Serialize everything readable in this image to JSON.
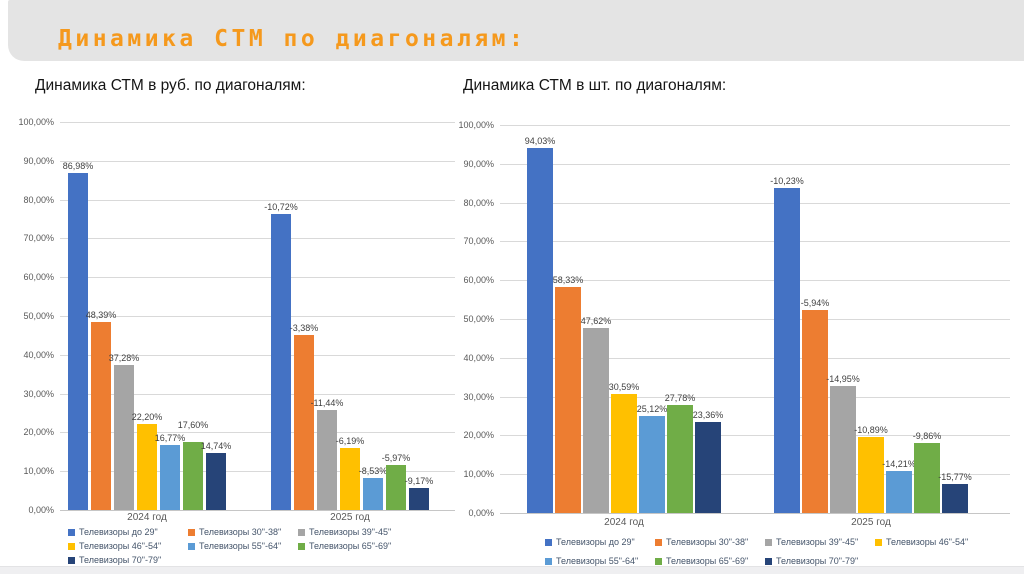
{
  "header": {
    "title": "Динамика СТМ по диагоналям:",
    "accent_color": "#f5991d",
    "band_color": "#e4e4e4"
  },
  "chart_data": [
    {
      "type": "bar",
      "title": "Динамика СТМ в руб. по диагоналям:",
      "categories": [
        "2024 год",
        "2025 год"
      ],
      "ylim": [
        0,
        100
      ],
      "grid": true,
      "legend_position": "bottom",
      "ytick_labels": [
        "100,00%",
        "90,00%",
        "80,00%",
        "70,00%",
        "60,00%",
        "50,00%",
        "40,00%",
        "30,00%",
        "20,00%",
        "10,00%",
        "0,00%"
      ],
      "series": [
        {
          "name": "Телевизоры  до 29\"",
          "color": "#4472c4",
          "points": [
            {
              "label": "86,98%",
              "value": 86.98,
              "height": 86.98
            },
            {
              "label": "-10,72%",
              "value": -10.72,
              "height": 76.26
            }
          ]
        },
        {
          "name": "Телевизоры 30\"-38\"",
          "color": "#ed7d31",
          "points": [
            {
              "label": "48,39%",
              "value": 48.39,
              "height": 48.39
            },
            {
              "label": "-3,38%",
              "value": -3.38,
              "height": 45.01
            }
          ]
        },
        {
          "name": "Телевизоры 39\"-45\"",
          "color": "#a5a5a5",
          "points": [
            {
              "label": "37,28%",
              "value": 37.28,
              "height": 37.28
            },
            {
              "label": "-11,44%",
              "value": -11.44,
              "height": 25.84
            }
          ]
        },
        {
          "name": "Телевизоры 46\"-54\"",
          "color": "#ffc000",
          "points": [
            {
              "label": "22,20%",
              "value": 22.2,
              "height": 22.2
            },
            {
              "label": "-6,19%",
              "value": -6.19,
              "height": 16.01
            }
          ]
        },
        {
          "name": "Телевизоры 55\"-64\"",
          "color": "#5b9bd5",
          "points": [
            {
              "label": "16,77%",
              "value": 16.77,
              "height": 16.77
            },
            {
              "label": "-8,53%",
              "value": -8.53,
              "height": 8.24
            }
          ]
        },
        {
          "name": "Телевизоры 65\"-69\"",
          "color": "#70ad47",
          "points": [
            {
              "label": "17,60%",
              "value": 17.6,
              "height": 17.6,
              "dy": 10
            },
            {
              "label": "-5,97%",
              "value": -5.97,
              "height": 11.63
            }
          ]
        },
        {
          "name": "Телевизоры 70\"-79\"",
          "color": "#264478",
          "points": [
            {
              "label": "14,74%",
              "value": 14.74,
              "height": 14.74
            },
            {
              "label": "-9,17%",
              "value": -9.17,
              "height": 5.57
            }
          ]
        }
      ]
    },
    {
      "type": "bar",
      "title": "Динамика СТМ в шт. по диагоналям:",
      "categories": [
        "2024 год",
        "2025 год"
      ],
      "ylim": [
        0,
        100
      ],
      "grid": true,
      "legend_position": "bottom",
      "ytick_labels": [
        "100,00%",
        "90,00%",
        "80,00%",
        "70,00%",
        "60,00%",
        "50,00%",
        "40,00%",
        "30,00%",
        "20,00%",
        "10,00%",
        "0,00%"
      ],
      "series": [
        {
          "name": "Телевизоры  до 29\"",
          "color": "#4472c4",
          "points": [
            {
              "label": "94,03%",
              "value": 94.03,
              "height": 94.03
            },
            {
              "label": "-10,23%",
              "value": -10.23,
              "height": 83.8
            }
          ]
        },
        {
          "name": "Телевизоры 30\"-38\"",
          "color": "#ed7d31",
          "points": [
            {
              "label": "58,33%",
              "value": 58.33,
              "height": 58.33
            },
            {
              "label": "-5,94%",
              "value": -5.94,
              "height": 52.39
            }
          ]
        },
        {
          "name": "Телевизоры 39\"-45\"",
          "color": "#a5a5a5",
          "points": [
            {
              "label": "47,62%",
              "value": 47.62,
              "height": 47.62
            },
            {
              "label": "-14,95%",
              "value": -14.95,
              "height": 32.67
            }
          ]
        },
        {
          "name": "Телевизоры 46\"-54\"",
          "color": "#ffc000",
          "points": [
            {
              "label": "30,59%",
              "value": 30.59,
              "height": 30.59
            },
            {
              "label": "-10,89%",
              "value": -10.89,
              "height": 19.7
            }
          ]
        },
        {
          "name": "Телевизоры 55\"-64\"",
          "color": "#5b9bd5",
          "points": [
            {
              "label": "25,12%",
              "value": 25.12,
              "height": 25.12
            },
            {
              "label": "-14,21%",
              "value": -14.21,
              "height": 10.91
            }
          ]
        },
        {
          "name": "Телевизоры 65\"-69\"",
          "color": "#70ad47",
          "points": [
            {
              "label": "27,78%",
              "value": 27.78,
              "height": 27.78
            },
            {
              "label": "-9,86%",
              "value": -9.86,
              "height": 17.92
            }
          ]
        },
        {
          "name": "Телевизоры 70\"-79\"",
          "color": "#264478",
          "points": [
            {
              "label": "23,36%",
              "value": 23.36,
              "height": 23.36
            },
            {
              "label": "-15,77%",
              "value": -15.77,
              "height": 7.59
            }
          ]
        }
      ]
    }
  ]
}
